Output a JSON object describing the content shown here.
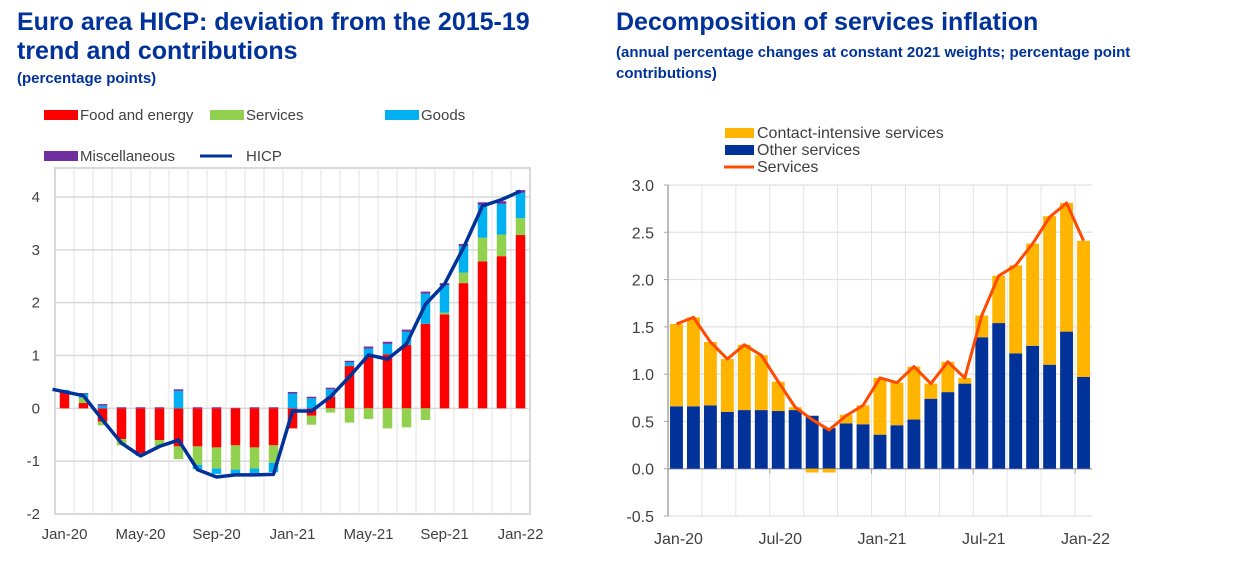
{
  "left": {
    "title": "Euro area HICP: deviation from the 2015-19 trend and contributions",
    "title_line1": "Euro area HICP: deviation from the 2015-19",
    "title_line2": "trend and contributions",
    "subtitle": "(percentage points)"
  },
  "right": {
    "title": "Decomposition of services inflation",
    "subtitle": "(annual percentage changes at constant 2021 weights; percentage point contributions)"
  },
  "chart_data": [
    {
      "type": "bar",
      "stacked": true,
      "title": "Euro area HICP: deviation from the 2015-19 trend and contributions",
      "subtitle": "(percentage points)",
      "xlabel": "",
      "ylabel": "",
      "ylim": [
        -2,
        4.4
      ],
      "yticks": [
        -2,
        -1,
        0,
        1,
        2,
        3,
        4
      ],
      "grid": true,
      "legend_position": "top",
      "x": [
        "Jan-20",
        "Feb-20",
        "Mar-20",
        "Apr-20",
        "May-20",
        "Jun-20",
        "Jul-20",
        "Aug-20",
        "Sep-20",
        "Oct-20",
        "Nov-20",
        "Dec-20",
        "Jan-21",
        "Feb-21",
        "Mar-21",
        "Apr-21",
        "May-21",
        "Jun-21",
        "Jul-21",
        "Aug-21",
        "Sep-21",
        "Oct-21",
        "Nov-21",
        "Dec-21",
        "Jan-22"
      ],
      "xtick_labels": [
        "Jan-20",
        "May-20",
        "Sep-20",
        "Jan-21",
        "May-21",
        "Sep-21",
        "Jan-22"
      ],
      "series": [
        {
          "name": "Food and energy",
          "kind": "bar",
          "color": "#ff0000",
          "values": [
            0.31,
            0.1,
            -0.25,
            -0.58,
            -0.85,
            -0.6,
            -0.72,
            -0.72,
            -0.74,
            -0.7,
            -0.74,
            -0.7,
            -0.38,
            -0.14,
            0.22,
            0.8,
            0.98,
            1.02,
            1.2,
            1.6,
            1.78,
            2.37,
            2.78,
            2.88,
            3.28
          ]
        },
        {
          "name": "Services",
          "kind": "bar",
          "color": "#92d050",
          "values": [
            0.02,
            0.1,
            -0.07,
            -0.12,
            0.0,
            -0.12,
            -0.24,
            -0.35,
            -0.4,
            -0.46,
            -0.4,
            -0.33,
            0.0,
            -0.17,
            -0.08,
            -0.27,
            -0.2,
            -0.38,
            -0.36,
            -0.22,
            0.03,
            0.2,
            0.45,
            0.41,
            0.32
          ]
        },
        {
          "name": "Goods",
          "kind": "bar",
          "color": "#00b0f0",
          "values": [
            0.02,
            0.08,
            0.05,
            0.0,
            -0.05,
            0.0,
            0.33,
            -0.08,
            -0.1,
            -0.08,
            -0.09,
            -0.18,
            0.28,
            0.19,
            0.14,
            0.07,
            0.15,
            0.2,
            0.25,
            0.57,
            0.52,
            0.5,
            0.62,
            0.58,
            0.48
          ]
        },
        {
          "name": "Miscellaneous",
          "kind": "bar",
          "color": "#7030a0",
          "values": [
            0.0,
            0.01,
            0.03,
            0.02,
            0.02,
            0.02,
            0.03,
            0.02,
            0.02,
            0.01,
            0.02,
            0.02,
            0.03,
            0.03,
            0.03,
            0.03,
            0.04,
            0.04,
            0.04,
            0.04,
            0.04,
            0.04,
            0.05,
            0.05,
            0.05
          ]
        },
        {
          "name": "HICP",
          "kind": "line",
          "color": "#003299",
          "values": [
            0.36,
            0.24,
            -0.22,
            -0.66,
            -0.9,
            -0.72,
            -0.6,
            -1.16,
            -1.3,
            -1.26,
            -1.26,
            -1.25,
            -0.05,
            -0.05,
            0.22,
            0.6,
            1.01,
            0.93,
            1.22,
            1.97,
            2.35,
            3.04,
            3.83,
            3.95,
            4.11
          ]
        }
      ]
    },
    {
      "type": "bar",
      "stacked": true,
      "title": "Decomposition of services inflation",
      "subtitle": "(annual percentage changes at constant 2021 weights; percentage point contributions)",
      "xlabel": "",
      "ylabel": "",
      "ylim": [
        -0.5,
        3.0
      ],
      "yticks": [
        -0.5,
        0.0,
        0.5,
        1.0,
        1.5,
        2.0,
        2.5,
        3.0
      ],
      "ytick_labels": [
        "-0.5",
        "0.0",
        "0.5",
        "1.0",
        "1.5",
        "2.0",
        "2.5",
        "3.0"
      ],
      "grid": true,
      "legend_position": "top",
      "x": [
        "Jan-20",
        "Feb-20",
        "Mar-20",
        "Apr-20",
        "May-20",
        "Jun-20",
        "Jul-20",
        "Aug-20",
        "Sep-20",
        "Oct-20",
        "Nov-20",
        "Dec-20",
        "Jan-21",
        "Feb-21",
        "Mar-21",
        "Apr-21",
        "May-21",
        "Jun-21",
        "Jul-21",
        "Aug-21",
        "Sep-21",
        "Oct-21",
        "Nov-21",
        "Dec-21",
        "Jan-22"
      ],
      "xtick_labels": [
        "Jan-20",
        "Jul-20",
        "Jan-21",
        "Jul-21",
        "Jan-22"
      ],
      "series": [
        {
          "name": "Contact-intensive services",
          "kind": "bar",
          "color": "#ffb400",
          "values": [
            0.87,
            0.94,
            0.67,
            0.56,
            0.69,
            0.58,
            0.31,
            0.03,
            -0.04,
            -0.04,
            0.09,
            0.2,
            0.6,
            0.45,
            0.56,
            0.16,
            0.32,
            0.06,
            0.23,
            0.5,
            0.93,
            1.08,
            1.57,
            1.36,
            1.44
          ]
        },
        {
          "name": "Other services",
          "kind": "bar",
          "color": "#003299",
          "values": [
            0.66,
            0.66,
            0.67,
            0.6,
            0.62,
            0.62,
            0.61,
            0.62,
            0.56,
            0.43,
            0.48,
            0.47,
            0.36,
            0.46,
            0.52,
            0.74,
            0.81,
            0.9,
            1.39,
            1.54,
            1.22,
            1.3,
            1.1,
            1.45,
            0.97
          ]
        },
        {
          "name": "Services",
          "kind": "line",
          "color": "#ff4b00",
          "values": [
            1.53,
            1.6,
            1.34,
            1.16,
            1.31,
            1.2,
            0.92,
            0.65,
            0.52,
            0.41,
            0.56,
            0.67,
            0.96,
            0.91,
            1.08,
            0.9,
            1.13,
            0.96,
            1.62,
            2.04,
            2.15,
            2.38,
            2.66,
            2.81,
            2.41
          ]
        }
      ]
    }
  ]
}
